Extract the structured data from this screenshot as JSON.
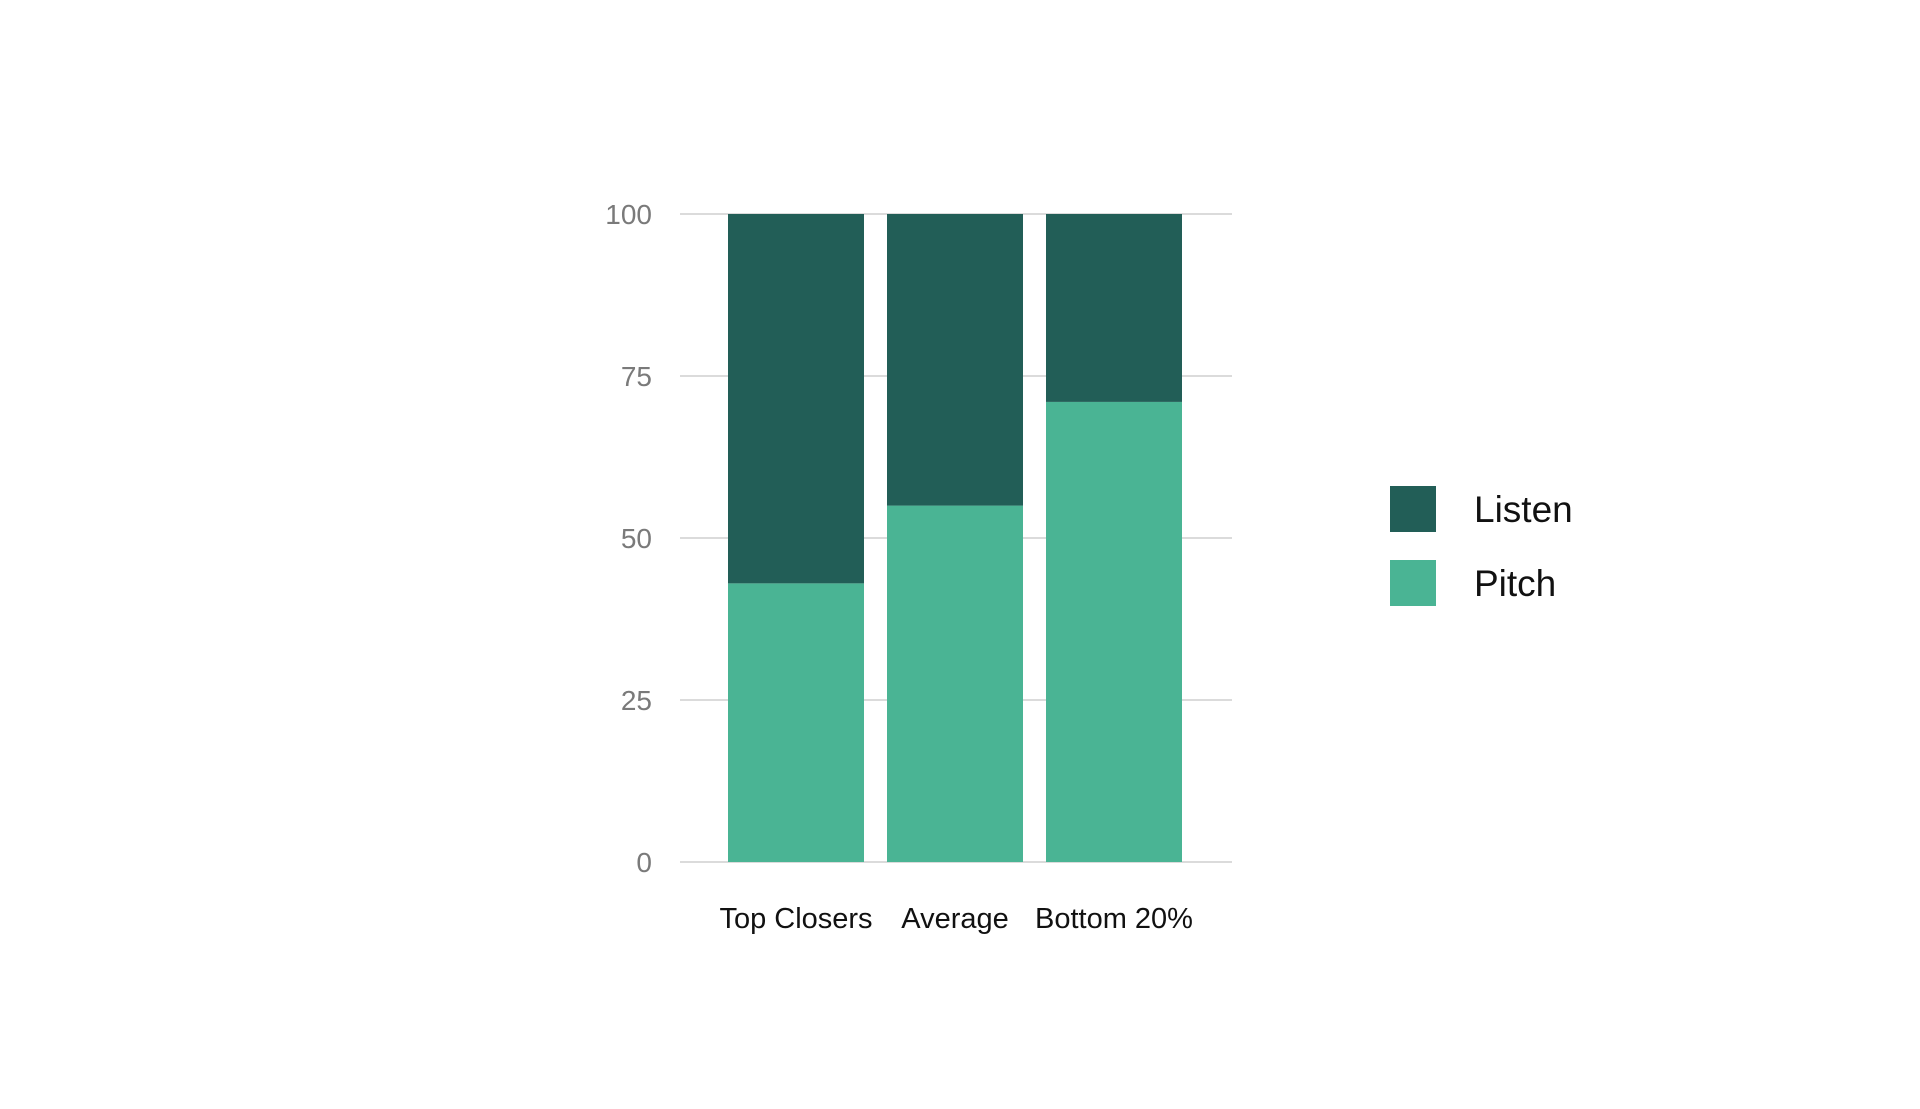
{
  "chart_data": {
    "type": "bar",
    "stacked": true,
    "categories": [
      "Top Closers",
      "Average",
      "Bottom 20%"
    ],
    "series": [
      {
        "name": "Pitch",
        "values": [
          43,
          55,
          71
        ],
        "color": "#4ab494"
      },
      {
        "name": "Listen",
        "values": [
          57,
          45,
          29
        ],
        "color": "#225e57"
      }
    ],
    "yticks": [
      "0",
      "25",
      "50",
      "75",
      "100"
    ],
    "ylim": [
      0,
      100
    ],
    "grid": true,
    "legend": {
      "position": "right",
      "order": [
        "Listen",
        "Pitch"
      ]
    },
    "title": "",
    "xlabel": "",
    "ylabel": ""
  }
}
